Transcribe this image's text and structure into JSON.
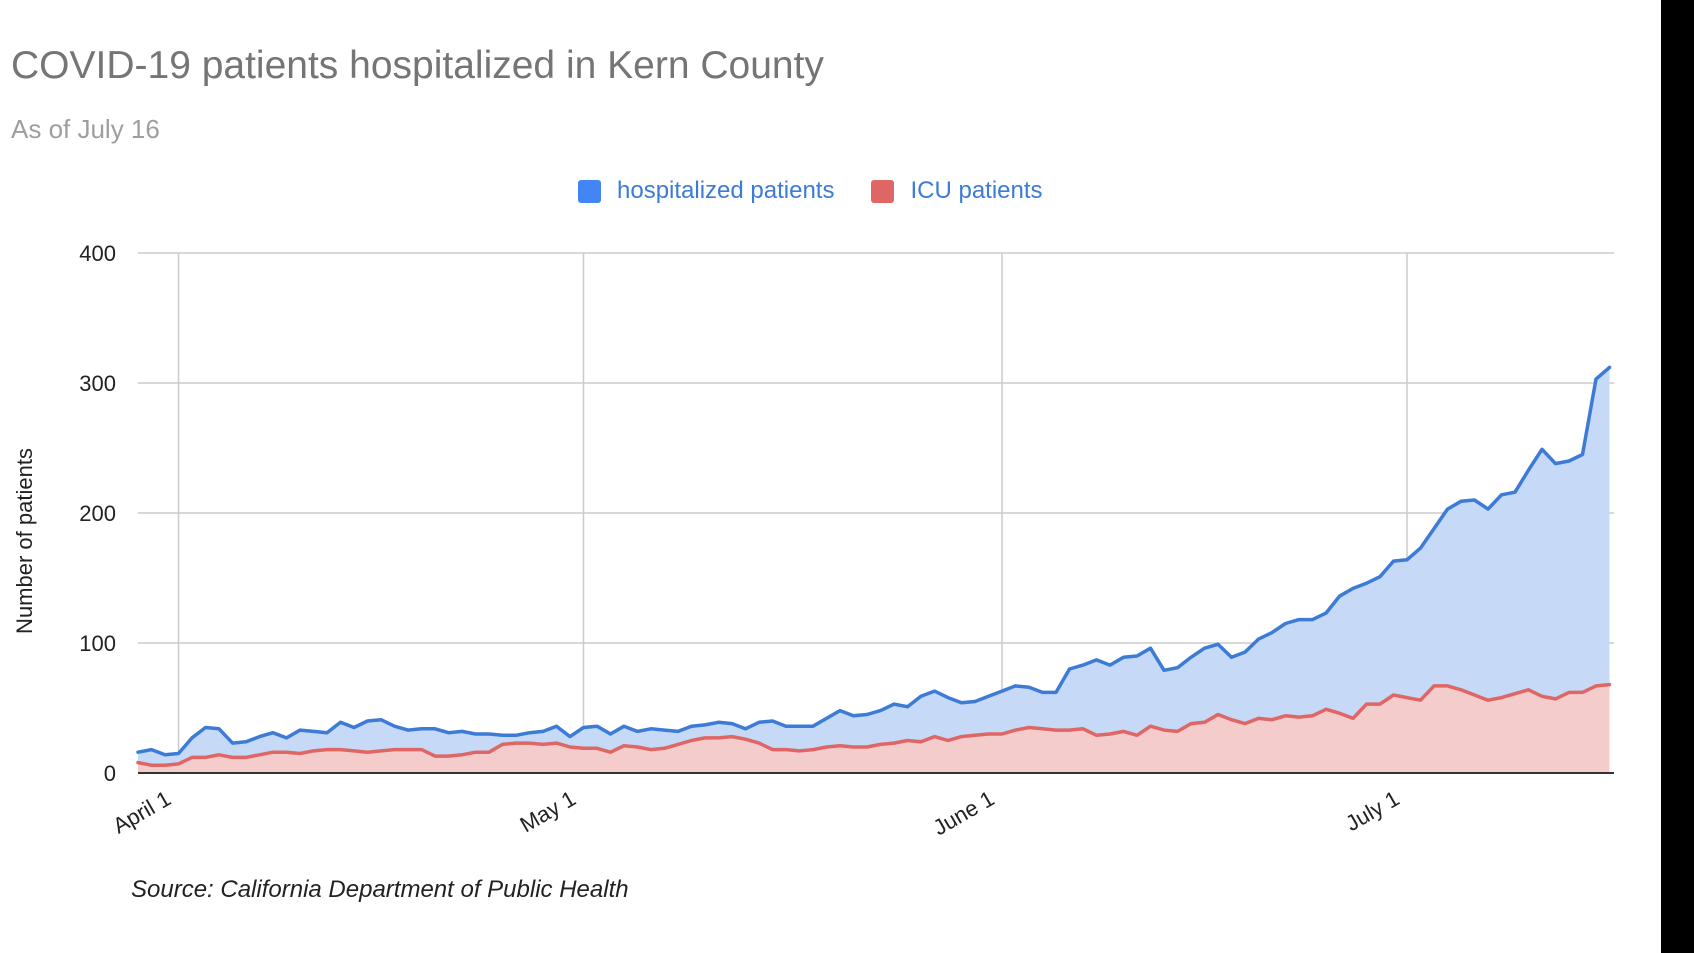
{
  "chart_data": {
    "type": "area",
    "title": "COVID-19 patients hospitalized in Kern County",
    "subtitle": "As of July 16",
    "ylabel": "Number of patients",
    "xlabel": "",
    "source": "Source: California Department of Public Health",
    "ylim": [
      0,
      400
    ],
    "yticks": [
      0,
      100,
      200,
      300,
      400
    ],
    "x_range": [
      "2020-03-29",
      "2020-07-16"
    ],
    "x_tick_labels": [
      {
        "label": "April 1",
        "date": "2020-04-01"
      },
      {
        "label": "May 1",
        "date": "2020-05-01"
      },
      {
        "label": "June 1",
        "date": "2020-06-01"
      },
      {
        "label": "July 1",
        "date": "2020-07-01"
      }
    ],
    "grid": true,
    "legend_position": "top",
    "x": [
      "2020-03-29",
      "2020-03-30",
      "2020-03-31",
      "2020-04-01",
      "2020-04-02",
      "2020-04-03",
      "2020-04-04",
      "2020-04-05",
      "2020-04-06",
      "2020-04-07",
      "2020-04-08",
      "2020-04-09",
      "2020-04-10",
      "2020-04-11",
      "2020-04-12",
      "2020-04-13",
      "2020-04-14",
      "2020-04-15",
      "2020-04-16",
      "2020-04-17",
      "2020-04-18",
      "2020-04-19",
      "2020-04-20",
      "2020-04-21",
      "2020-04-22",
      "2020-04-23",
      "2020-04-24",
      "2020-04-25",
      "2020-04-26",
      "2020-04-27",
      "2020-04-28",
      "2020-04-29",
      "2020-04-30",
      "2020-05-01",
      "2020-05-02",
      "2020-05-03",
      "2020-05-04",
      "2020-05-05",
      "2020-05-06",
      "2020-05-07",
      "2020-05-08",
      "2020-05-09",
      "2020-05-10",
      "2020-05-11",
      "2020-05-12",
      "2020-05-13",
      "2020-05-14",
      "2020-05-15",
      "2020-05-16",
      "2020-05-17",
      "2020-05-18",
      "2020-05-19",
      "2020-05-20",
      "2020-05-21",
      "2020-05-22",
      "2020-05-23",
      "2020-05-24",
      "2020-05-25",
      "2020-05-26",
      "2020-05-27",
      "2020-05-28",
      "2020-05-29",
      "2020-05-30",
      "2020-05-31",
      "2020-06-01",
      "2020-06-02",
      "2020-06-03",
      "2020-06-04",
      "2020-06-05",
      "2020-06-06",
      "2020-06-07",
      "2020-06-08",
      "2020-06-09",
      "2020-06-10",
      "2020-06-11",
      "2020-06-12",
      "2020-06-13",
      "2020-06-14",
      "2020-06-15",
      "2020-06-16",
      "2020-06-17",
      "2020-06-18",
      "2020-06-19",
      "2020-06-20",
      "2020-06-21",
      "2020-06-22",
      "2020-06-23",
      "2020-06-24",
      "2020-06-25",
      "2020-06-26",
      "2020-06-27",
      "2020-06-28",
      "2020-06-29",
      "2020-06-30",
      "2020-07-01",
      "2020-07-02",
      "2020-07-03",
      "2020-07-04",
      "2020-07-05",
      "2020-07-06",
      "2020-07-07",
      "2020-07-08",
      "2020-07-09",
      "2020-07-10",
      "2020-07-11",
      "2020-07-12",
      "2020-07-13",
      "2020-07-14",
      "2020-07-15",
      "2020-07-16"
    ],
    "series": [
      {
        "name": "hospitalized patients",
        "color": "#3c7bd6",
        "fill": "#c6d9f6",
        "values": [
          16,
          18,
          14,
          15,
          27,
          35,
          34,
          23,
          24,
          28,
          31,
          27,
          33,
          32,
          31,
          39,
          35,
          40,
          41,
          36,
          33,
          34,
          34,
          31,
          32,
          30,
          30,
          29,
          29,
          31,
          32,
          36,
          28,
          35,
          36,
          30,
          36,
          32,
          34,
          33,
          32,
          36,
          37,
          39,
          38,
          34,
          39,
          40,
          36,
          36,
          36,
          42,
          48,
          44,
          45,
          48,
          53,
          51,
          59,
          63,
          58,
          54,
          55,
          59,
          63,
          67,
          66,
          62,
          62,
          80,
          83,
          87,
          83,
          89,
          90,
          96,
          79,
          81,
          89,
          96,
          99,
          89,
          93,
          103,
          108,
          115,
          118,
          118,
          123,
          136,
          142,
          146,
          151,
          163,
          164,
          173,
          188,
          203,
          209,
          210,
          203,
          214,
          216,
          233,
          249,
          238,
          240,
          245,
          303,
          312
        ]
      },
      {
        "name": "ICU patients",
        "color": "#e06666",
        "fill": "#f4cccc",
        "values": [
          8,
          6,
          6,
          7,
          12,
          12,
          14,
          12,
          12,
          14,
          16,
          16,
          15,
          17,
          18,
          18,
          17,
          16,
          17,
          18,
          18,
          18,
          13,
          13,
          14,
          16,
          16,
          22,
          23,
          23,
          22,
          23,
          20,
          19,
          19,
          16,
          21,
          20,
          18,
          19,
          22,
          25,
          27,
          27,
          28,
          26,
          23,
          18,
          18,
          17,
          18,
          20,
          21,
          20,
          20,
          22,
          23,
          25,
          24,
          28,
          25,
          28,
          29,
          30,
          30,
          33,
          35,
          34,
          33,
          33,
          34,
          29,
          30,
          32,
          29,
          36,
          33,
          32,
          38,
          39,
          45,
          41,
          38,
          42,
          41,
          44,
          43,
          44,
          49,
          46,
          42,
          53,
          53,
          60,
          58,
          56,
          67,
          67,
          64,
          60,
          56,
          58,
          61,
          64,
          59,
          57,
          62,
          62,
          67,
          68
        ]
      }
    ]
  }
}
